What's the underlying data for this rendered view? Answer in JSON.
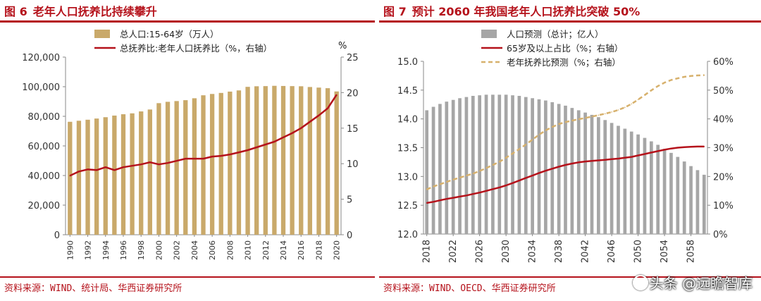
{
  "figures": [
    {
      "number": "图 6",
      "title": "老年人口抚养比持续攀升",
      "source": "资料来源：WIND、统计局、华西证券研究所"
    },
    {
      "number": "图 7",
      "title": "预计 2060 年我国老年人口抚养比突破 50%",
      "source": "资料来源：WIND、OECD、华西证券研究所"
    }
  ],
  "watermark": {
    "text": "头条 @远瞻智库",
    "icon": "camera-icon"
  },
  "chart_data": [
    {
      "type": "bar",
      "x": [
        1990,
        1991,
        1992,
        1993,
        1994,
        1995,
        1996,
        1997,
        1998,
        1999,
        2000,
        2001,
        2002,
        2003,
        2004,
        2005,
        2006,
        2007,
        2008,
        2009,
        2010,
        2011,
        2012,
        2013,
        2014,
        2015,
        2016,
        2017,
        2018,
        2019,
        2020
      ],
      "x_tick_labels": [
        "1990",
        "1992",
        "1994",
        "1996",
        "1998",
        "2000",
        "2002",
        "2004",
        "2006",
        "2008",
        "2010",
        "2012",
        "2014",
        "2016",
        "2018",
        "2020"
      ],
      "unit_right": "%",
      "series": [
        {
          "name": "总人口:15-64岁（万人）",
          "type": "bar",
          "axis": "left",
          "color": "#c9a96a",
          "values": [
            76300,
            77000,
            77700,
            78500,
            79400,
            80500,
            81400,
            82000,
            83300,
            84600,
            88900,
            89800,
            90300,
            90900,
            92200,
            94200,
            95100,
            95800,
            96700,
            97500,
            99900,
            100300,
            100400,
            100600,
            100500,
            100400,
            100300,
            99800,
            99400,
            99000,
            96800
          ]
        },
        {
          "name": "总抚养比:老年人口抚养比（%，右轴）",
          "type": "line",
          "axis": "right",
          "color": "#b5121b",
          "values": [
            8.3,
            8.9,
            9.2,
            9.1,
            9.5,
            9.1,
            9.5,
            9.7,
            9.9,
            10.2,
            9.9,
            10.1,
            10.4,
            10.7,
            10.7,
            10.7,
            11.0,
            11.1,
            11.3,
            11.6,
            11.9,
            12.3,
            12.7,
            13.1,
            13.7,
            14.3,
            15.0,
            15.9,
            16.8,
            17.8,
            19.7
          ]
        }
      ],
      "y_left": {
        "min": 0,
        "max": 120000,
        "ticks": [
          "0",
          "20,000",
          "40,000",
          "60,000",
          "80,000",
          "100,000",
          "120,000"
        ]
      },
      "y_right": {
        "min": 0,
        "max": 25,
        "ticks": [
          "0",
          "5",
          "10",
          "15",
          "20",
          "25"
        ]
      },
      "legend": "top-center"
    },
    {
      "type": "bar",
      "x": [
        2018,
        2019,
        2020,
        2021,
        2022,
        2023,
        2024,
        2025,
        2026,
        2027,
        2028,
        2029,
        2030,
        2031,
        2032,
        2033,
        2034,
        2035,
        2036,
        2037,
        2038,
        2039,
        2040,
        2041,
        2042,
        2043,
        2044,
        2045,
        2046,
        2047,
        2048,
        2049,
        2050,
        2051,
        2052,
        2053,
        2054,
        2055,
        2056,
        2057,
        2058,
        2059,
        2060
      ],
      "x_tick_labels": [
        "2018",
        "2022",
        "2026",
        "2030",
        "2034",
        "2038",
        "2042",
        "2046",
        "2050",
        "2054",
        "2058"
      ],
      "series": [
        {
          "name": "人口预测（总计；亿人）",
          "type": "bar",
          "axis": "left",
          "color": "#a6a6a6",
          "values": [
            14.15,
            14.21,
            14.26,
            14.3,
            14.33,
            14.36,
            14.38,
            14.4,
            14.41,
            14.42,
            14.42,
            14.42,
            14.42,
            14.41,
            14.4,
            14.38,
            14.36,
            14.34,
            14.32,
            14.29,
            14.26,
            14.23,
            14.19,
            14.15,
            14.11,
            14.07,
            14.03,
            13.98,
            13.93,
            13.88,
            13.83,
            13.78,
            13.73,
            13.67,
            13.61,
            13.55,
            13.48,
            13.41,
            13.34,
            13.26,
            13.18,
            13.11,
            13.03
          ]
        },
        {
          "name": "65岁及以上占比（%；右轴）",
          "type": "line",
          "axis": "right",
          "color": "#b5121b",
          "values": [
            10.8,
            11.2,
            11.7,
            12.2,
            12.6,
            13.0,
            13.4,
            13.9,
            14.4,
            15.0,
            15.6,
            16.2,
            16.9,
            17.7,
            18.6,
            19.5,
            20.3,
            21.2,
            22.0,
            22.7,
            23.4,
            24.0,
            24.5,
            24.9,
            25.2,
            25.4,
            25.6,
            25.8,
            26.0,
            26.2,
            26.5,
            26.8,
            27.3,
            27.8,
            28.3,
            28.8,
            29.3,
            29.7,
            30.0,
            30.2,
            30.3,
            30.4,
            30.4
          ]
        },
        {
          "name": "老年抚养比预测（%；右轴）",
          "type": "line",
          "axis": "right",
          "color": "#d7b16d",
          "dashed": true,
          "values": [
            15.5,
            16.5,
            17.3,
            18.1,
            18.9,
            19.6,
            20.3,
            21.0,
            21.9,
            22.9,
            24.0,
            25.1,
            26.5,
            28.0,
            29.5,
            31.1,
            32.8,
            34.5,
            36.0,
            37.2,
            38.2,
            38.9,
            39.4,
            39.9,
            40.3,
            40.8,
            41.3,
            41.8,
            42.4,
            43.1,
            44.0,
            45.2,
            46.7,
            48.3,
            49.9,
            51.4,
            52.6,
            53.5,
            54.1,
            54.6,
            54.9,
            55.1,
            55.2
          ]
        }
      ],
      "y_left": {
        "min": 12.0,
        "max": 15.0,
        "ticks": [
          "12.0",
          "12.5",
          "13.0",
          "13.5",
          "14.0",
          "14.5",
          "15.0"
        ]
      },
      "y_right": {
        "min": 0,
        "max": 60,
        "ticks": [
          "0%",
          "10%",
          "20%",
          "30%",
          "40%",
          "50%",
          "60%"
        ]
      },
      "legend": "top-center"
    }
  ]
}
